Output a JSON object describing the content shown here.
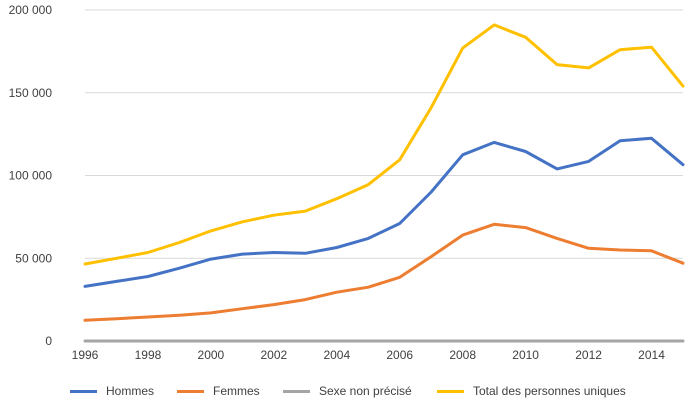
{
  "chart_data": {
    "type": "line",
    "title": "",
    "xlabel": "",
    "ylabel": "",
    "x": [
      1996,
      1997,
      1998,
      1999,
      2000,
      2001,
      2002,
      2003,
      2004,
      2005,
      2006,
      2007,
      2008,
      2009,
      2010,
      2011,
      2012,
      2013,
      2014,
      2015
    ],
    "x_tick_values": [
      1996,
      1998,
      2000,
      2002,
      2004,
      2006,
      2008,
      2010,
      2012,
      2014
    ],
    "x_tick_labels": [
      "1996",
      "1998",
      "2000",
      "2002",
      "2004",
      "2006",
      "2008",
      "2010",
      "2012",
      "2014"
    ],
    "xlim": [
      1996,
      2015
    ],
    "y_tick_values": [
      0,
      50000,
      100000,
      150000,
      200000
    ],
    "y_tick_labels": [
      "0",
      "50 000",
      "100 000",
      "150 000",
      "200 000"
    ],
    "ylim": [
      0,
      200000
    ],
    "grid": "horizontal",
    "legend_position": "bottom",
    "series": [
      {
        "name": "Hommes",
        "color": "#4472c4",
        "values": [
          33000,
          36000,
          39000,
          44000,
          49500,
          52500,
          53500,
          53000,
          56500,
          62000,
          71000,
          90000,
          112500,
          120000,
          114500,
          104000,
          108500,
          121000,
          122500,
          106500
        ]
      },
      {
        "name": "Femmes",
        "color": "#ed7d31",
        "values": [
          12500,
          13500,
          14500,
          15500,
          17000,
          19500,
          22000,
          25000,
          29500,
          32500,
          38500,
          51000,
          64000,
          70500,
          68500,
          62000,
          56000,
          55000,
          54500,
          47000
        ]
      },
      {
        "name": "Sexe non précisé",
        "color": "#a5a5a5",
        "values": [
          0,
          0,
          0,
          0,
          0,
          0,
          0,
          0,
          0,
          0,
          0,
          0,
          0,
          0,
          0,
          0,
          0,
          0,
          0,
          0
        ]
      },
      {
        "name": "Total des personnes uniques",
        "color": "#ffc000",
        "values": [
          46500,
          50000,
          53500,
          59500,
          66500,
          72000,
          76000,
          78500,
          86000,
          94500,
          109500,
          141000,
          177000,
          191000,
          183500,
          167000,
          165000,
          176000,
          177500,
          154000
        ]
      }
    ]
  }
}
